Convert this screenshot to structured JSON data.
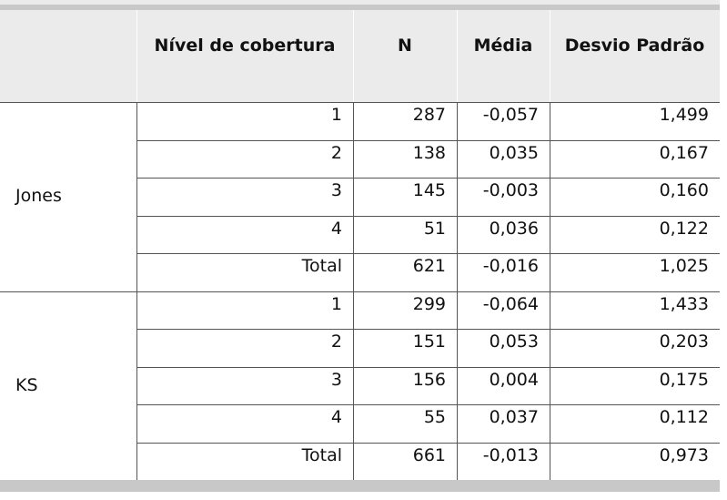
{
  "table": {
    "headers": [
      "Nível de cobertura",
      "N",
      "Média",
      "Desvio Padrão"
    ],
    "groups": [
      {
        "name": "Jones",
        "rows": [
          [
            "1",
            "287",
            "-0,057",
            "1,499"
          ],
          [
            "2",
            "138",
            "0,035",
            "0,167"
          ],
          [
            "3",
            "145",
            "-0,003",
            "0,160"
          ],
          [
            "4",
            "51",
            "0,036",
            "0,122"
          ],
          [
            "Total",
            "621",
            "-0,016",
            "1,025"
          ]
        ]
      },
      {
        "name": "KS",
        "rows": [
          [
            "1",
            "299",
            "-0,064",
            "1,433"
          ],
          [
            "2",
            "151",
            "0,053",
            "0,203"
          ],
          [
            "3",
            "156",
            "0,004",
            "0,175"
          ],
          [
            "4",
            "55",
            "0,037",
            "0,112"
          ],
          [
            "Total",
            "661",
            "-0,013",
            "0,973"
          ]
        ]
      }
    ]
  }
}
